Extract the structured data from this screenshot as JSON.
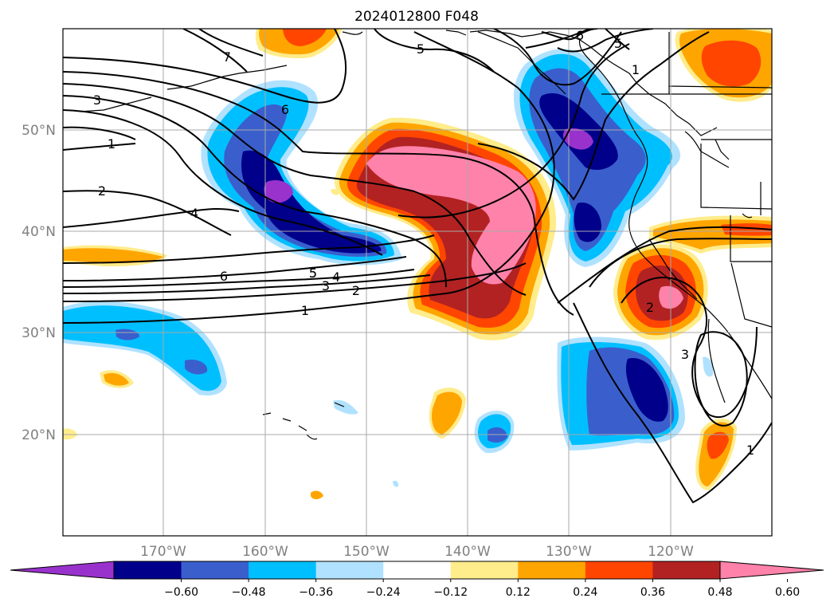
{
  "title": "2024012800 F048",
  "lat_labels": [
    "50°N",
    "40°N",
    "30°N",
    "20°N"
  ],
  "lon_labels": [
    "170°W",
    "160°W",
    "150°W",
    "140°W",
    "130°W",
    "120°W"
  ],
  "colorbar": {
    "ticks": [
      "−0.60",
      "−0.48",
      "−0.36",
      "−0.24",
      "−0.12",
      "0.12",
      "0.24",
      "0.36",
      "0.48",
      "0.60"
    ],
    "colors": [
      "#9932cc",
      "#00008b",
      "#3a5fcd",
      "#00bfff",
      "#b0e2ff",
      "#ffffff",
      "#ffec8b",
      "#ffa500",
      "#ff4500",
      "#b22222",
      "#ff82ab"
    ]
  },
  "contour_labels": [
    "7",
    "6",
    "5",
    "5",
    "6",
    "5",
    "1",
    "3",
    "1",
    "2",
    "4",
    "6",
    "5",
    "4",
    "3",
    "2",
    "1",
    "2",
    "3",
    "1"
  ]
}
